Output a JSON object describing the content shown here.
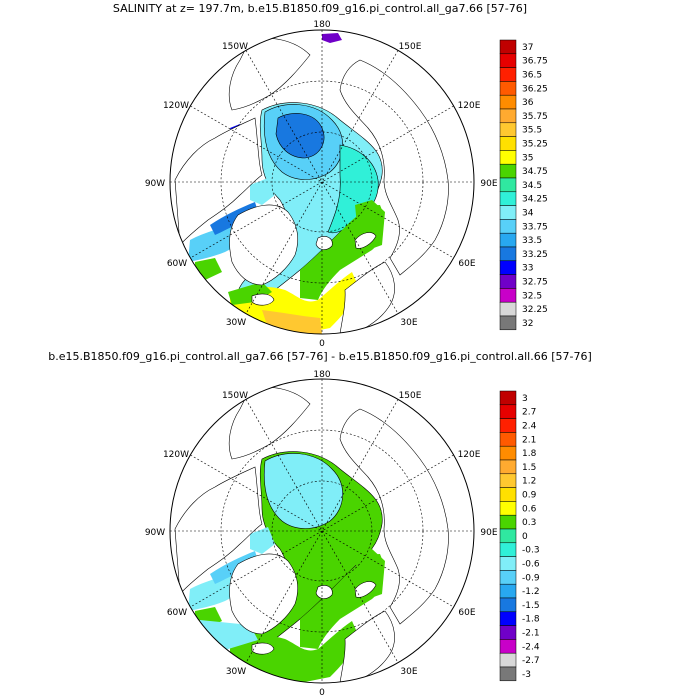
{
  "titles": {
    "top": "SALINITY at z= 197.7m, b.e15.B1850.f09_g16.pi_control.all_ga7.66 [57-76]",
    "bottom": "b.e15.B1850.f09_g16.pi_control.all_ga7.66 [57-76] - b.e15.B1850.f09_g16.pi_control.all.66 [57-76]"
  },
  "lon_labels": {
    "l180": "180",
    "l150w": "150W",
    "l150e": "150E",
    "l120w": "120W",
    "l120e": "120E",
    "l90w": "90W",
    "l90e": "90E",
    "l60w": "60W",
    "l60e": "60E",
    "l30w": "30W",
    "l30e": "30E",
    "l0": "0"
  },
  "colorbar_top": {
    "labels": [
      "37",
      "36.75",
      "36.5",
      "36.25",
      "36",
      "35.75",
      "35.5",
      "35.25",
      "35",
      "34.75",
      "34.5",
      "34.25",
      "34",
      "33.75",
      "33.5",
      "33.25",
      "33",
      "32.75",
      "32.5",
      "32.25",
      "32"
    ],
    "colors": [
      "#c00000",
      "#e60000",
      "#ff2000",
      "#ff5a00",
      "#ff8c00",
      "#ffaa30",
      "#ffc830",
      "#ffe000",
      "#ffff00",
      "#4ad400",
      "#30e8a0",
      "#30f0d8",
      "#80eef8",
      "#58d0f8",
      "#28a8f0",
      "#1878e0",
      "#0000ff",
      "#7000c8",
      "#c800c8",
      "#d8d8d8",
      "#787878"
    ]
  },
  "colorbar_bottom": {
    "labels": [
      "3",
      "2.7",
      "2.4",
      "2.1",
      "1.8",
      "1.5",
      "1.2",
      "0.9",
      "0.6",
      "0.3",
      "0",
      "-0.3",
      "-0.6",
      "-0.9",
      "-1.2",
      "-1.5",
      "-1.8",
      "-2.1",
      "-2.4",
      "-2.7",
      "-3"
    ],
    "colors": [
      "#c00000",
      "#e60000",
      "#ff2000",
      "#ff5a00",
      "#ff8c00",
      "#ffaa30",
      "#ffc830",
      "#ffe000",
      "#ffff00",
      "#4ad400",
      "#30e8a0",
      "#30f0d8",
      "#80eef8",
      "#58d0f8",
      "#28a8f0",
      "#1878e0",
      "#0000ff",
      "#7000c8",
      "#c800c8",
      "#d8d8d8",
      "#787878"
    ]
  }
}
